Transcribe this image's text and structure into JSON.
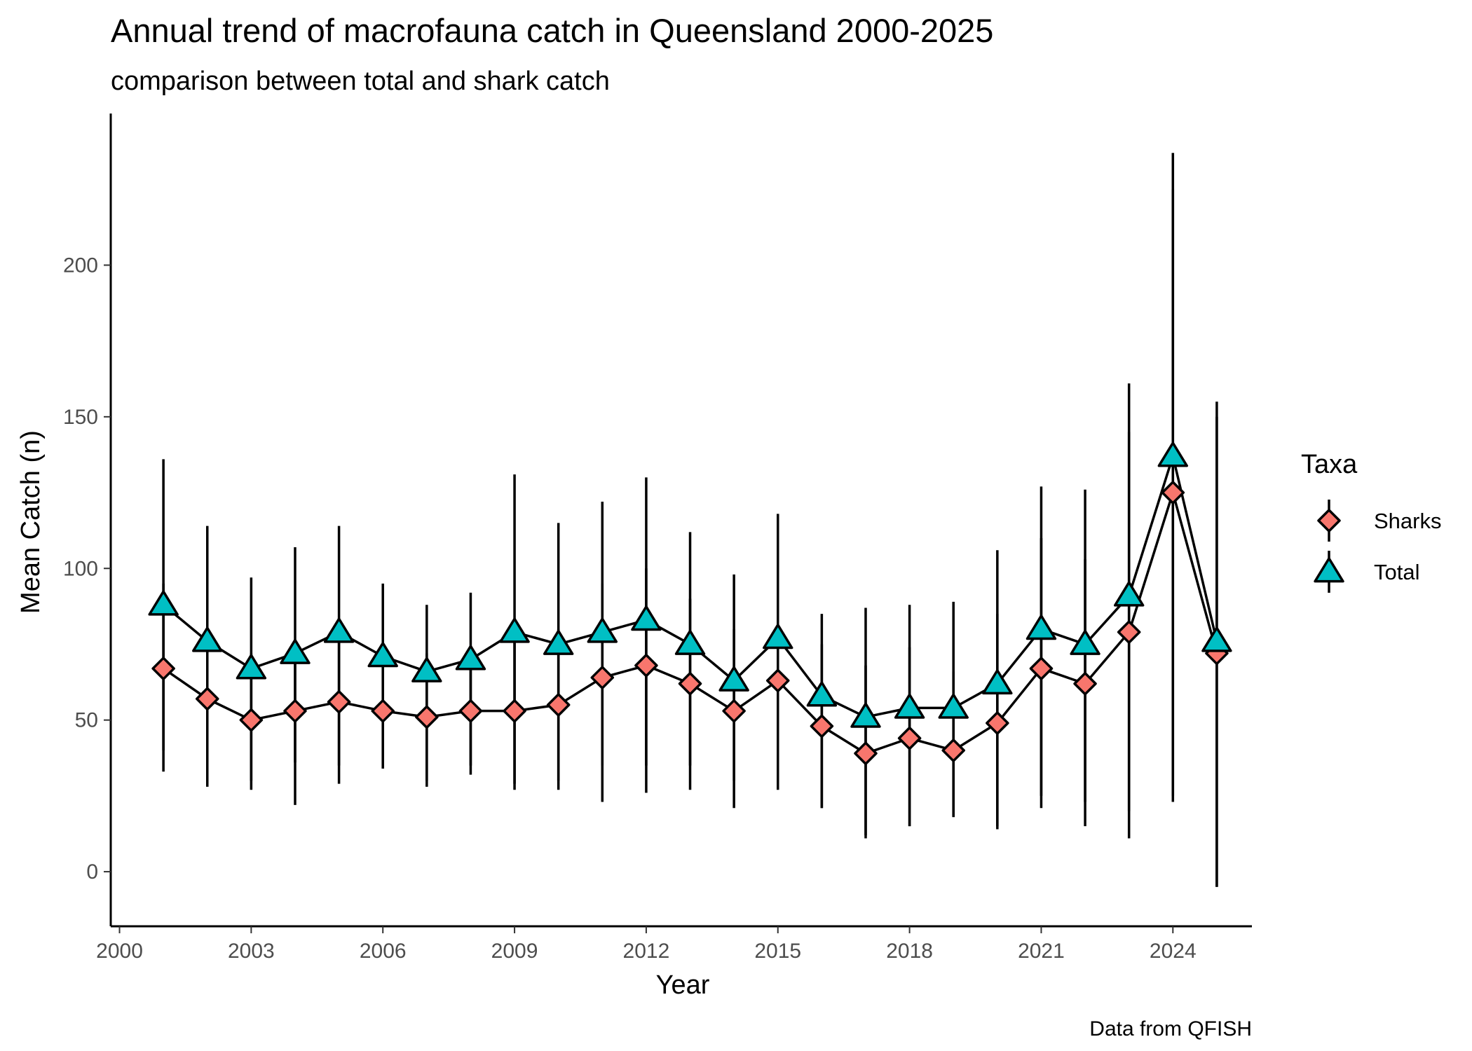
{
  "chart_data": {
    "type": "line",
    "title": "Annual trend of macrofauna catch in Queensland 2000-2025",
    "subtitle": "comparison between total and shark catch",
    "xlabel": "Year",
    "ylabel": "Mean Catch (n)",
    "caption": "Data from QFISH",
    "xlim": [
      1999.8,
      2025.8
    ],
    "ylim": [
      -18,
      250
    ],
    "x_ticks": [
      2000,
      2003,
      2006,
      2009,
      2012,
      2015,
      2018,
      2021,
      2024
    ],
    "x_tick_labels": [
      "2000",
      "2003",
      "2006",
      "2009",
      "2012",
      "2015",
      "2018",
      "2021",
      "2024"
    ],
    "y_ticks": [
      0,
      50,
      100,
      150,
      200
    ],
    "y_tick_labels": [
      "0",
      "50",
      "100",
      "150",
      "200"
    ],
    "grid": false,
    "legend": {
      "title": "Taxa",
      "position": "right"
    },
    "x": [
      2001,
      2002,
      2003,
      2004,
      2005,
      2006,
      2007,
      2008,
      2009,
      2010,
      2011,
      2012,
      2013,
      2014,
      2015,
      2016,
      2017,
      2018,
      2019,
      2020,
      2021,
      2022,
      2023,
      2024,
      2025
    ],
    "series": [
      {
        "name": "Sharks",
        "shape": "diamond",
        "color": "#F8766D",
        "values": [
          67,
          57,
          50,
          53,
          56,
          53,
          51,
          53,
          53,
          55,
          64,
          68,
          62,
          53,
          63,
          48,
          39,
          44,
          40,
          49,
          67,
          62,
          79,
          125,
          72
        ],
        "lower": [
          40,
          36,
          30,
          36,
          35,
          34,
          30,
          35,
          29,
          30,
          35,
          35,
          35,
          30,
          30,
          21,
          12,
          15,
          18,
          15,
          25,
          23,
          20,
          25,
          -5
        ],
        "upper": [
          95,
          80,
          72,
          72,
          80,
          73,
          72,
          73,
          80,
          80,
          95,
          100,
          90,
          80,
          90,
          75,
          68,
          74,
          66,
          85,
          110,
          103,
          145,
          225,
          150
        ]
      },
      {
        "name": "Total",
        "shape": "triangle",
        "color": "#00BFC4",
        "values": [
          88,
          76,
          67,
          72,
          79,
          71,
          66,
          70,
          79,
          75,
          79,
          83,
          75,
          63,
          77,
          58,
          51,
          54,
          54,
          62,
          80,
          75,
          91,
          137,
          76
        ],
        "lower": [
          33,
          28,
          27,
          22,
          29,
          34,
          28,
          32,
          27,
          27,
          23,
          26,
          27,
          21,
          27,
          21,
          11,
          15,
          18,
          14,
          21,
          15,
          11,
          23,
          -5
        ],
        "upper": [
          136,
          114,
          97,
          107,
          114,
          95,
          88,
          92,
          131,
          115,
          122,
          130,
          112,
          98,
          118,
          85,
          87,
          88,
          89,
          106,
          127,
          126,
          161,
          237,
          155
        ]
      }
    ]
  }
}
